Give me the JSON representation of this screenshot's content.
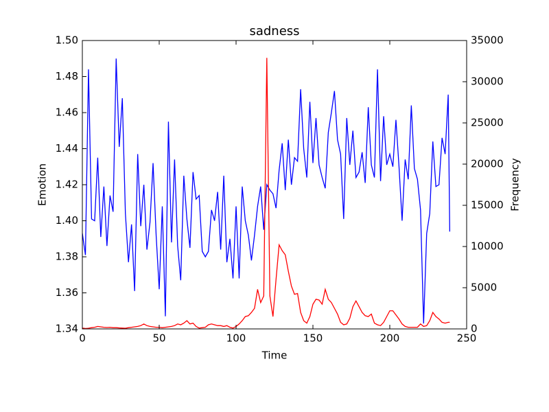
{
  "chart_data": {
    "type": "line",
    "title": "sadness",
    "x_label": "Time",
    "y_label": "Emotion",
    "y2_label": "Frequency",
    "x": [
      0,
      2,
      4,
      6,
      8,
      10,
      12,
      14,
      16,
      18,
      20,
      22,
      24,
      26,
      28,
      30,
      32,
      34,
      36,
      38,
      40,
      42,
      44,
      46,
      48,
      50,
      52,
      54,
      56,
      58,
      60,
      62,
      64,
      66,
      68,
      70,
      72,
      74,
      76,
      78,
      80,
      82,
      84,
      86,
      88,
      90,
      92,
      94,
      96,
      98,
      100,
      102,
      104,
      106,
      108,
      110,
      112,
      114,
      116,
      118,
      120,
      122,
      124,
      126,
      128,
      130,
      132,
      134,
      136,
      138,
      140,
      142,
      144,
      146,
      148,
      150,
      152,
      154,
      156,
      158,
      160,
      162,
      164,
      166,
      168,
      170,
      172,
      174,
      176,
      178,
      180,
      182,
      184,
      186,
      188,
      190,
      192,
      194,
      196,
      198,
      200,
      202,
      204,
      206,
      208,
      210,
      212,
      214,
      216,
      218,
      220,
      222,
      224,
      226,
      228,
      230,
      232,
      234,
      236,
      238,
      239
    ],
    "series": [
      {
        "name": "Emotion",
        "color": "#0000ff",
        "axis": "y",
        "values": [
          1.393,
          1.381,
          1.484,
          1.401,
          1.4,
          1.435,
          1.391,
          1.419,
          1.386,
          1.414,
          1.405,
          1.49,
          1.441,
          1.468,
          1.404,
          1.377,
          1.398,
          1.361,
          1.437,
          1.397,
          1.42,
          1.384,
          1.399,
          1.432,
          1.392,
          1.362,
          1.408,
          1.347,
          1.455,
          1.388,
          1.434,
          1.386,
          1.367,
          1.425,
          1.401,
          1.385,
          1.427,
          1.412,
          1.414,
          1.383,
          1.38,
          1.383,
          1.406,
          1.4,
          1.416,
          1.384,
          1.425,
          1.377,
          1.39,
          1.368,
          1.408,
          1.368,
          1.419,
          1.4,
          1.392,
          1.378,
          1.392,
          1.408,
          1.419,
          1.395,
          1.42,
          1.417,
          1.415,
          1.407,
          1.428,
          1.443,
          1.417,
          1.445,
          1.42,
          1.435,
          1.433,
          1.473,
          1.44,
          1.424,
          1.466,
          1.432,
          1.457,
          1.431,
          1.424,
          1.418,
          1.449,
          1.46,
          1.472,
          1.445,
          1.437,
          1.401,
          1.457,
          1.431,
          1.45,
          1.424,
          1.427,
          1.438,
          1.421,
          1.463,
          1.431,
          1.424,
          1.484,
          1.422,
          1.458,
          1.431,
          1.437,
          1.43,
          1.456,
          1.43,
          1.4,
          1.434,
          1.423,
          1.464,
          1.429,
          1.423,
          1.406,
          1.343,
          1.393,
          1.404,
          1.444,
          1.419,
          1.42,
          1.446,
          1.437,
          1.47,
          1.394
        ]
      },
      {
        "name": "Frequency",
        "color": "#ff0000",
        "axis": "y2",
        "values": [
          100,
          50,
          80,
          150,
          200,
          300,
          250,
          200,
          180,
          200,
          150,
          150,
          120,
          100,
          80,
          150,
          200,
          250,
          300,
          400,
          600,
          400,
          300,
          250,
          200,
          200,
          150,
          200,
          250,
          300,
          400,
          600,
          500,
          700,
          1000,
          600,
          700,
          300,
          100,
          150,
          200,
          500,
          600,
          500,
          400,
          400,
          300,
          400,
          200,
          100,
          300,
          600,
          1000,
          1500,
          1600,
          2000,
          2500,
          4800,
          3200,
          4000,
          32900,
          4000,
          1500,
          6000,
          10200,
          9500,
          9000,
          7000,
          5200,
          4200,
          4300,
          2000,
          1000,
          700,
          1500,
          3000,
          3600,
          3500,
          3000,
          4800,
          3600,
          3200,
          2500,
          1800,
          800,
          500,
          600,
          1300,
          2700,
          3400,
          2700,
          2000,
          1600,
          1500,
          1800,
          700,
          500,
          400,
          800,
          1500,
          2200,
          2200,
          1700,
          1200,
          600,
          300,
          200,
          200,
          200,
          200,
          600,
          300,
          400,
          1000,
          2000,
          1500,
          1200,
          800,
          700,
          800,
          800
        ]
      }
    ],
    "xlim": [
      0,
      250
    ],
    "xticks": [
      0,
      50,
      100,
      150,
      200,
      250
    ],
    "ylim": [
      1.34,
      1.5
    ],
    "yticks": [
      1.34,
      1.36,
      1.38,
      {
        "value": 1.4,
        "label": "1.40"
      },
      1.42,
      1.44,
      1.46,
      1.48,
      {
        "value": 1.5,
        "label": "1.50"
      }
    ],
    "y2lim": [
      0,
      35000
    ],
    "y2ticks": [
      0,
      5000,
      10000,
      15000,
      20000,
      25000,
      30000,
      35000
    ]
  }
}
